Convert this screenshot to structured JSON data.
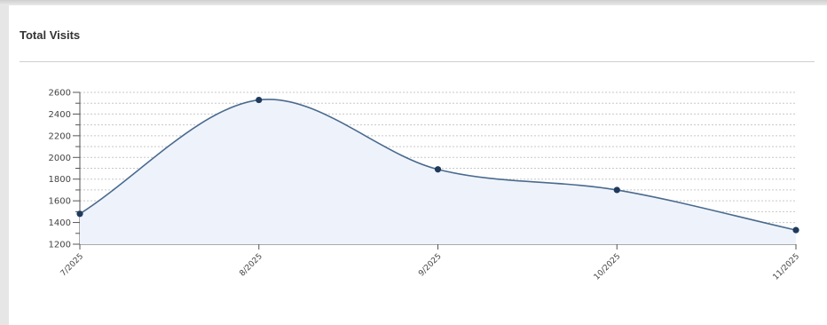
{
  "panel": {
    "title": "Total Visits"
  },
  "chart_data": {
    "type": "area",
    "title": "Total Visits",
    "xlabel": "",
    "ylabel": "",
    "categories": [
      "7/2025",
      "8/2025",
      "9/2025",
      "10/2025",
      "11/2025"
    ],
    "series": [
      {
        "values": [
          1480,
          2530,
          1890,
          1700,
          1330
        ]
      }
    ],
    "ylim": [
      1200,
      2600
    ],
    "yticks": [
      1200,
      1400,
      1600,
      1800,
      2000,
      2200,
      2400,
      2600
    ],
    "grid": true,
    "legend": "none",
    "colors": {
      "line": "#4a6a8e",
      "fill": "#eef3fb",
      "point": "#1f3a5c",
      "grid": "#c8c8c8",
      "axis": "#555555"
    }
  }
}
